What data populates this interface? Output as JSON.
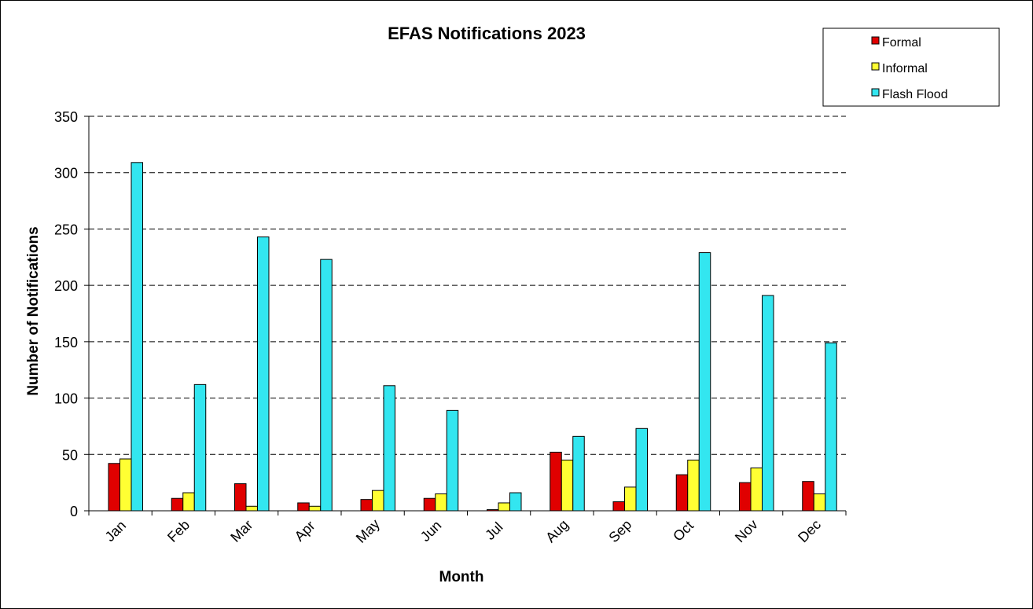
{
  "chart_data": {
    "type": "bar",
    "title": "EFAS Notifications 2023",
    "xlabel": "Month",
    "ylabel": "Number of Notifications",
    "categories": [
      "Jan",
      "Feb",
      "Mar",
      "Apr",
      "May",
      "Jun",
      "Jul",
      "Aug",
      "Sep",
      "Oct",
      "Nov",
      "Dec"
    ],
    "ylim": [
      0,
      350
    ],
    "yticks": [
      "0",
      "50",
      "100",
      "150",
      "200",
      "250",
      "300",
      "350"
    ],
    "grid": "horizontal dashed",
    "legend_position": "top-right",
    "series": [
      {
        "name": "Formal",
        "color": "#E00000",
        "values": [
          42,
          11,
          24,
          7,
          10,
          11,
          1,
          52,
          8,
          32,
          25,
          26
        ]
      },
      {
        "name": "Informal",
        "color": "#FFFF33",
        "values": [
          46,
          16,
          4,
          4,
          18,
          15,
          7,
          45,
          21,
          45,
          38,
          15
        ]
      },
      {
        "name": "Flash Flood",
        "color": "#33E6F0",
        "values": [
          309,
          112,
          243,
          223,
          111,
          89,
          16,
          66,
          73,
          229,
          191,
          149
        ]
      }
    ]
  }
}
